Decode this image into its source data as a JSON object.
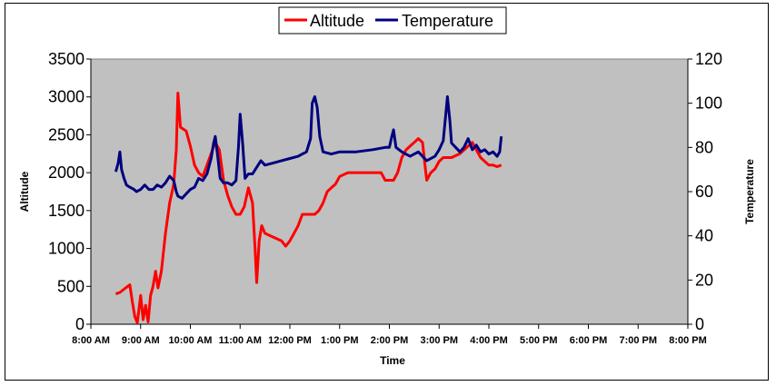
{
  "chart_data": {
    "type": "line",
    "xlabel": "Time",
    "ylabel_left": "Altitude",
    "ylabel_right": "Temperature",
    "ylim_left": [
      0,
      3500
    ],
    "ylim_right": [
      0,
      120
    ],
    "xlim": [
      "8:00 AM",
      "8:00 PM"
    ],
    "x_ticks": [
      "8:00 AM",
      "9:00 AM",
      "10:00 AM",
      "11:00 AM",
      "12:00 PM",
      "1:00 PM",
      "2:00 PM",
      "3:00 PM",
      "4:00 PM",
      "5:00 PM",
      "6:00 PM",
      "7:00 PM",
      "8:00 PM"
    ],
    "y_ticks_left": [
      "0",
      "500",
      "1000",
      "1500",
      "2000",
      "2500",
      "3000",
      "3500"
    ],
    "y_ticks_right": [
      "0",
      "20",
      "40",
      "60",
      "80",
      "100",
      "120"
    ],
    "grid": false,
    "legend_position": "top",
    "plot_background": "#c0c0c0",
    "series": [
      {
        "name": "Altitude",
        "color": "#ff0000",
        "axis": "left",
        "points": [
          [
            "8:30 AM",
            400
          ],
          [
            "8:35 AM",
            420
          ],
          [
            "8:42 AM",
            480
          ],
          [
            "8:47 AM",
            520
          ],
          [
            "8:50 AM",
            300
          ],
          [
            "8:53 AM",
            100
          ],
          [
            "8:56 AM",
            20
          ],
          [
            "9:00 AM",
            380
          ],
          [
            "9:03 AM",
            60
          ],
          [
            "9:06 AM",
            250
          ],
          [
            "9:09 AM",
            30
          ],
          [
            "9:12 AM",
            380
          ],
          [
            "9:15 AM",
            500
          ],
          [
            "9:18 AM",
            700
          ],
          [
            "9:21 AM",
            480
          ],
          [
            "9:25 AM",
            700
          ],
          [
            "9:30 AM",
            1200
          ],
          [
            "9:35 AM",
            1600
          ],
          [
            "9:40 AM",
            1850
          ],
          [
            "9:43 AM",
            2300
          ],
          [
            "9:45 AM",
            3050
          ],
          [
            "9:48 AM",
            2600
          ],
          [
            "9:55 AM",
            2550
          ],
          [
            "10:00 AM",
            2350
          ],
          [
            "10:05 AM",
            2100
          ],
          [
            "10:10 AM",
            2000
          ],
          [
            "10:15 AM",
            1950
          ],
          [
            "10:20 AM",
            2100
          ],
          [
            "10:25 AM",
            2250
          ],
          [
            "10:30 AM",
            2400
          ],
          [
            "10:35 AM",
            2300
          ],
          [
            "10:40 AM",
            1900
          ],
          [
            "10:45 AM",
            1700
          ],
          [
            "10:50 AM",
            1550
          ],
          [
            "10:55 AM",
            1450
          ],
          [
            "11:00 AM",
            1450
          ],
          [
            "11:05 AM",
            1550
          ],
          [
            "11:10 AM",
            1800
          ],
          [
            "11:15 AM",
            1600
          ],
          [
            "11:18 AM",
            1000
          ],
          [
            "11:20 AM",
            550
          ],
          [
            "11:23 AM",
            1100
          ],
          [
            "11:26 AM",
            1300
          ],
          [
            "11:30 AM",
            1200
          ],
          [
            "11:40 AM",
            1150
          ],
          [
            "11:50 AM",
            1100
          ],
          [
            "11:55 AM",
            1030
          ],
          [
            "12:00 PM",
            1100
          ],
          [
            "12:05 PM",
            1200
          ],
          [
            "12:10 PM",
            1300
          ],
          [
            "12:15 PM",
            1450
          ],
          [
            "12:30 PM",
            1450
          ],
          [
            "12:35 PM",
            1500
          ],
          [
            "12:40 PM",
            1600
          ],
          [
            "12:45 PM",
            1750
          ],
          [
            "12:50 PM",
            1800
          ],
          [
            "12:55 PM",
            1850
          ],
          [
            "1:00 PM",
            1950
          ],
          [
            "1:10 PM",
            2000
          ],
          [
            "1:30 PM",
            2000
          ],
          [
            "1:50 PM",
            2000
          ],
          [
            "1:55 PM",
            1900
          ],
          [
            "2:05 PM",
            1900
          ],
          [
            "2:10 PM",
            2000
          ],
          [
            "2:15 PM",
            2200
          ],
          [
            "2:20 PM",
            2300
          ],
          [
            "2:25 PM",
            2350
          ],
          [
            "2:30 PM",
            2400
          ],
          [
            "2:35 PM",
            2450
          ],
          [
            "2:40 PM",
            2400
          ],
          [
            "2:43 PM",
            2100
          ],
          [
            "2:45 PM",
            1900
          ],
          [
            "2:50 PM",
            2000
          ],
          [
            "2:55 PM",
            2050
          ],
          [
            "3:00 PM",
            2150
          ],
          [
            "3:05 PM",
            2200
          ],
          [
            "3:15 PM",
            2200
          ],
          [
            "3:25 PM",
            2250
          ],
          [
            "3:30 PM",
            2300
          ],
          [
            "3:35 PM",
            2350
          ],
          [
            "3:40 PM",
            2400
          ],
          [
            "3:45 PM",
            2300
          ],
          [
            "3:50 PM",
            2200
          ],
          [
            "3:55 PM",
            2150
          ],
          [
            "4:00 PM",
            2100
          ],
          [
            "4:05 PM",
            2100
          ],
          [
            "4:10 PM",
            2080
          ],
          [
            "4:15 PM",
            2100
          ]
        ]
      },
      {
        "name": "Temperature",
        "color": "#000080",
        "axis": "right",
        "points": [
          [
            "8:30 AM",
            69
          ],
          [
            "8:33 AM",
            73
          ],
          [
            "8:35 AM",
            78
          ],
          [
            "8:37 AM",
            70
          ],
          [
            "8:40 AM",
            66
          ],
          [
            "8:43 AM",
            63
          ],
          [
            "8:47 AM",
            62
          ],
          [
            "8:52 AM",
            61
          ],
          [
            "8:55 AM",
            60
          ],
          [
            "9:00 AM",
            61
          ],
          [
            "9:05 AM",
            63
          ],
          [
            "9:10 AM",
            61
          ],
          [
            "9:15 AM",
            61
          ],
          [
            "9:20 AM",
            63
          ],
          [
            "9:25 AM",
            62
          ],
          [
            "9:30 AM",
            64
          ],
          [
            "9:35 AM",
            67
          ],
          [
            "9:40 AM",
            65
          ],
          [
            "9:43 AM",
            60
          ],
          [
            "9:45 AM",
            58
          ],
          [
            "9:50 AM",
            57
          ],
          [
            "9:55 AM",
            59
          ],
          [
            "10:00 AM",
            61
          ],
          [
            "10:05 AM",
            62
          ],
          [
            "10:10 AM",
            66
          ],
          [
            "10:15 AM",
            65
          ],
          [
            "10:20 AM",
            68
          ],
          [
            "10:25 AM",
            75
          ],
          [
            "10:28 AM",
            82
          ],
          [
            "10:30 AM",
            85
          ],
          [
            "10:33 AM",
            76
          ],
          [
            "10:36 AM",
            66
          ],
          [
            "10:40 AM",
            64
          ],
          [
            "10:45 AM",
            64
          ],
          [
            "10:50 AM",
            63
          ],
          [
            "10:55 AM",
            65
          ],
          [
            "10:58 AM",
            80
          ],
          [
            "11:00 AM",
            95
          ],
          [
            "11:03 AM",
            82
          ],
          [
            "11:06 AM",
            66
          ],
          [
            "11:10 AM",
            68
          ],
          [
            "11:15 AM",
            68
          ],
          [
            "11:20 AM",
            71
          ],
          [
            "11:25 AM",
            74
          ],
          [
            "11:30 AM",
            72
          ],
          [
            "11:40 AM",
            73
          ],
          [
            "11:50 AM",
            74
          ],
          [
            "12:00 PM",
            75
          ],
          [
            "12:10 PM",
            76
          ],
          [
            "12:15 PM",
            77
          ],
          [
            "12:20 PM",
            78
          ],
          [
            "12:25 PM",
            84
          ],
          [
            "12:27 PM",
            100
          ],
          [
            "12:30 PM",
            103
          ],
          [
            "12:33 PM",
            98
          ],
          [
            "12:36 PM",
            85
          ],
          [
            "12:40 PM",
            78
          ],
          [
            "12:50 PM",
            77
          ],
          [
            "1:00 PM",
            78
          ],
          [
            "1:20 PM",
            78
          ],
          [
            "1:40 PM",
            79
          ],
          [
            "1:55 PM",
            80
          ],
          [
            "2:00 PM",
            80
          ],
          [
            "2:03 PM",
            85
          ],
          [
            "2:05 PM",
            88
          ],
          [
            "2:08 PM",
            80
          ],
          [
            "2:15 PM",
            78
          ],
          [
            "2:25 PM",
            76
          ],
          [
            "2:35 PM",
            78
          ],
          [
            "2:40 PM",
            76
          ],
          [
            "2:45 PM",
            74
          ],
          [
            "2:55 PM",
            76
          ],
          [
            "3:00 PM",
            79
          ],
          [
            "3:05 PM",
            83
          ],
          [
            "3:08 PM",
            95
          ],
          [
            "3:10 PM",
            103
          ],
          [
            "3:13 PM",
            92
          ],
          [
            "3:15 PM",
            82
          ],
          [
            "3:20 PM",
            80
          ],
          [
            "3:25 PM",
            78
          ],
          [
            "3:30 PM",
            80
          ],
          [
            "3:35 PM",
            84
          ],
          [
            "3:40 PM",
            79
          ],
          [
            "3:45 PM",
            81
          ],
          [
            "3:50 PM",
            78
          ],
          [
            "3:55 PM",
            79
          ],
          [
            "4:00 PM",
            77
          ],
          [
            "4:05 PM",
            78
          ],
          [
            "4:10 PM",
            76
          ],
          [
            "4:13 PM",
            78
          ],
          [
            "4:15 PM",
            85
          ]
        ]
      }
    ]
  }
}
